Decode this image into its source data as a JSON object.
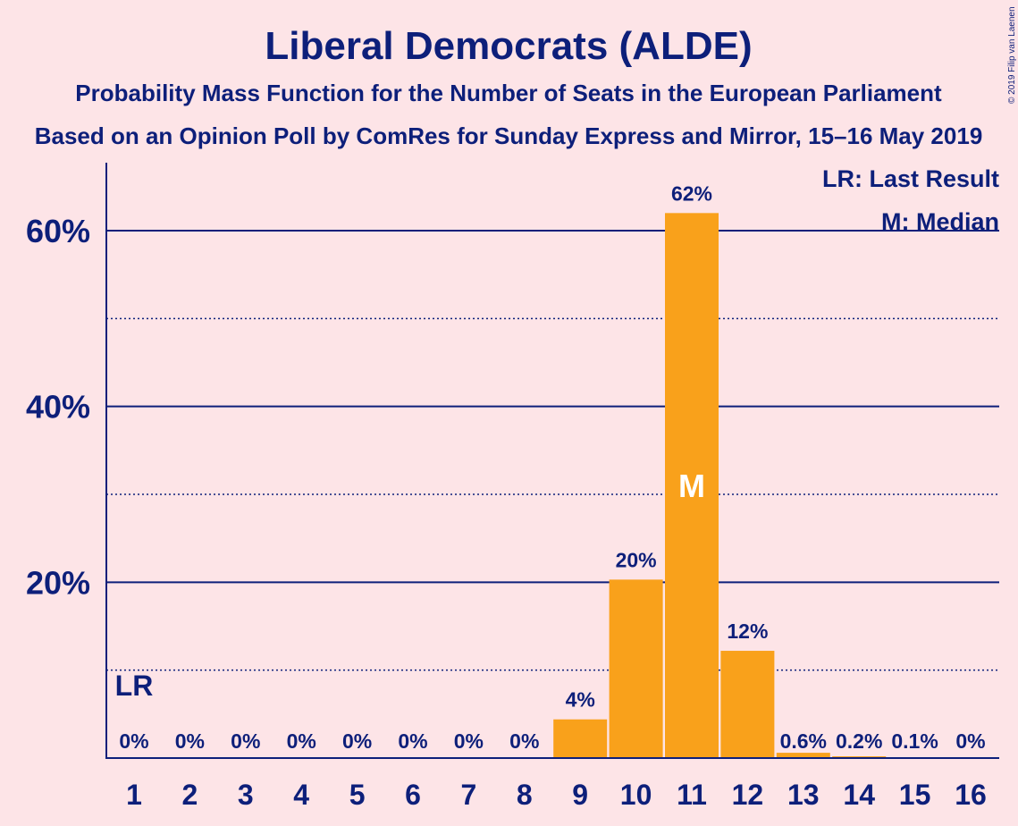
{
  "chart_data": {
    "type": "bar",
    "title": "Liberal Democrats (ALDE)",
    "subtitle": "Probability Mass Function for the Number of Seats in the European Parliament",
    "subtitle2": "Based on an Opinion Poll by ComRes for Sunday Express and Mirror, 15–16 May 2019",
    "categories": [
      "1",
      "2",
      "3",
      "4",
      "5",
      "6",
      "7",
      "8",
      "9",
      "10",
      "11",
      "12",
      "13",
      "14",
      "15",
      "16"
    ],
    "values": [
      0,
      0,
      0,
      0,
      0,
      0,
      0,
      0,
      4.4,
      20.3,
      62.0,
      12.2,
      0.6,
      0.2,
      0.1,
      0
    ],
    "data_labels": [
      "0%",
      "0%",
      "0%",
      "0%",
      "0%",
      "0%",
      "0%",
      "0%",
      "4%",
      "20%",
      "62%",
      "12%",
      "0.6%",
      "0.2%",
      "0.1%",
      "0%"
    ],
    "y_ticks": [
      {
        "value": 20,
        "label": "20%"
      },
      {
        "value": 40,
        "label": "40%"
      },
      {
        "value": 60,
        "label": "60%"
      }
    ],
    "ylim": [
      0,
      67.5
    ],
    "xlabel": "",
    "ylabel": "",
    "grid": "solid major lines at 20/40/60, dotted minor lines at 10/30/50",
    "legend": {
      "placement": "top-right",
      "items": [
        "LR: Last Result",
        "M: Median"
      ]
    },
    "last_result": {
      "category": "1",
      "label": "LR"
    },
    "median": {
      "category": "11",
      "label": "M"
    },
    "copyright": "© 2019 Filip van Laenen",
    "colors": {
      "background": "#fde4e7",
      "bar": "#f9a11b",
      "text": "#0d1f7a",
      "grid": "#0d1f7a"
    }
  }
}
